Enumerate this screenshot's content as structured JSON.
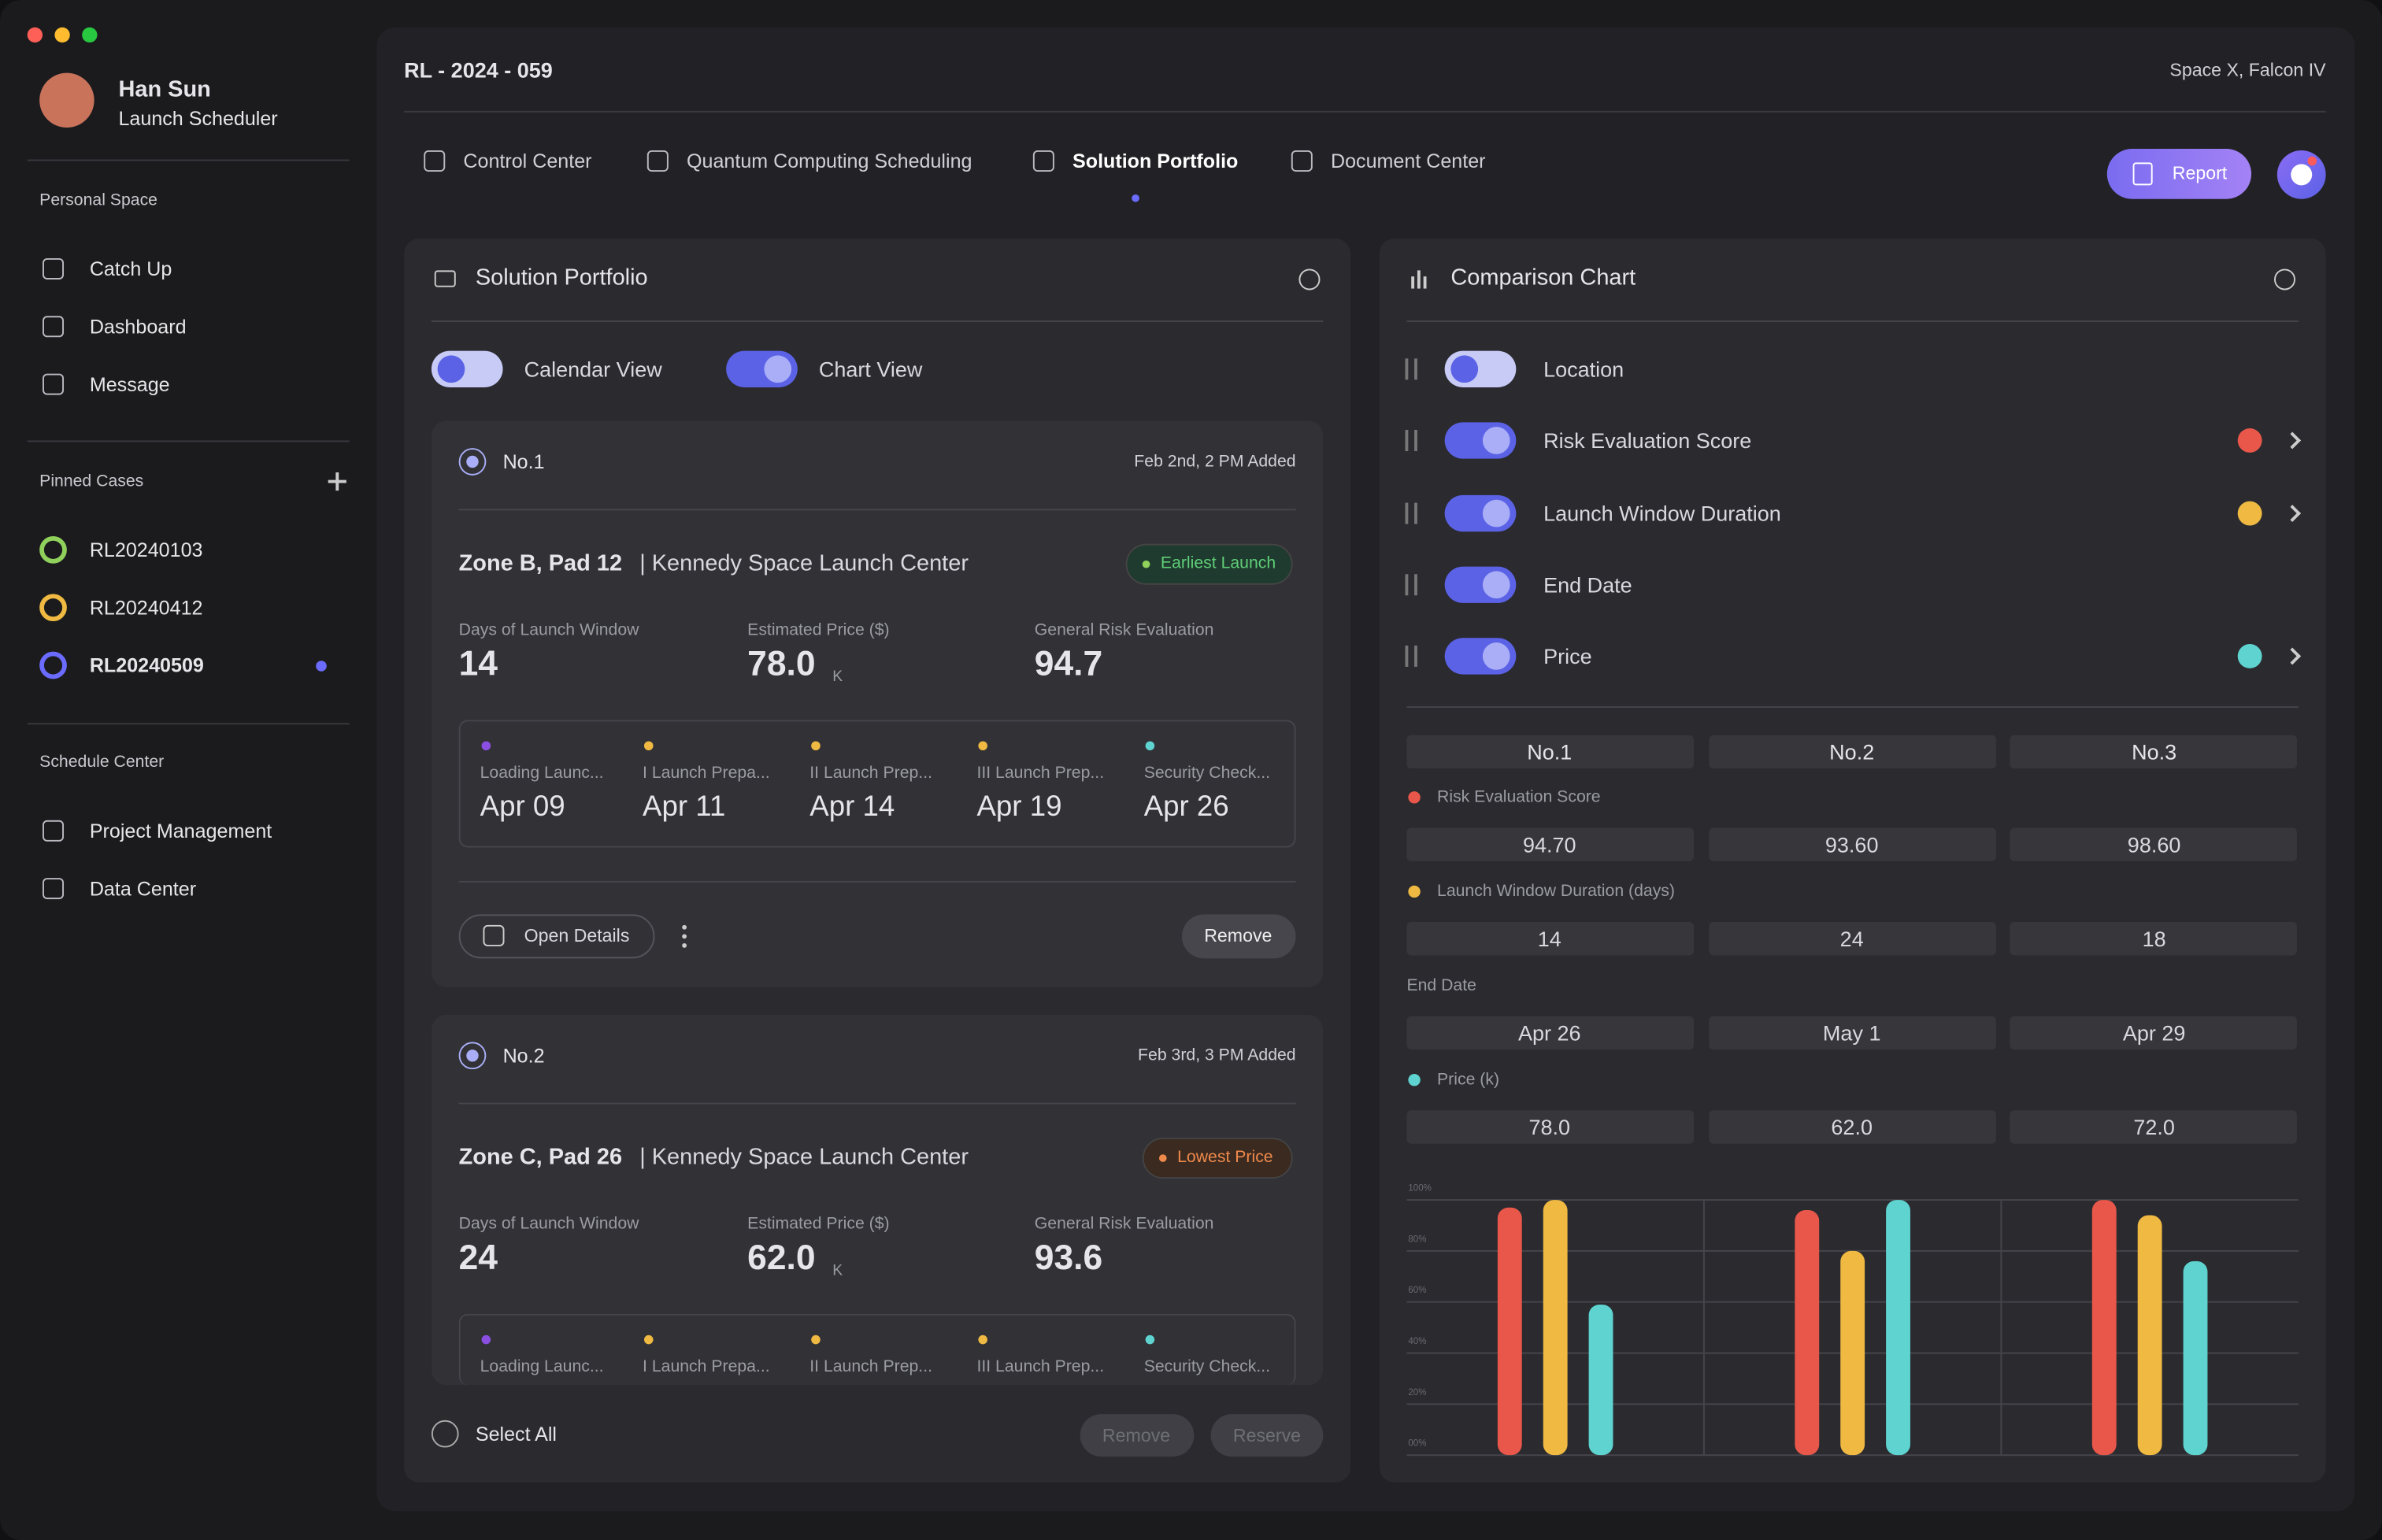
{
  "sidebar": {
    "user": {
      "name": "Han Sun",
      "role": "Launch Scheduler"
    },
    "personal_space": {
      "title": "Personal Space",
      "items": [
        "Catch Up",
        "Dashboard",
        "Message"
      ]
    },
    "pinned_cases": {
      "title": "Pinned Cases",
      "items": [
        "RL20240103",
        "RL20240412",
        "RL20240509"
      ]
    },
    "schedule_center": {
      "title": "Schedule Center",
      "items": [
        "Project Management",
        "Data Center"
      ]
    }
  },
  "header": {
    "case_id": "RL - 2024 - 059",
    "vehicle": "Space X, Falcon IV",
    "tabs": [
      "Control Center",
      "Quantum Computing Scheduling",
      "Solution Portfolio",
      "Document Center"
    ],
    "report": "Report"
  },
  "portfolio": {
    "title": "Solution Portfolio",
    "views": [
      "Calendar View",
      "Chart View"
    ],
    "cards": [
      {
        "no": "No.1",
        "added": "Feb 2nd, 2 PM Added",
        "zone": "Zone B, Pad 12",
        "center": "| Kennedy Space Launch Center",
        "tag": "Earliest Launch",
        "stats": [
          {
            "label": "Days of Launch Window",
            "value": "14"
          },
          {
            "label": "Estimated Price ($)",
            "value": "78.0",
            "unit": "K"
          },
          {
            "label": "General Risk Evaluation",
            "value": "94.7"
          }
        ],
        "timeline": [
          {
            "label": "Loading Launc...",
            "date": "Apr 09"
          },
          {
            "label": "I Launch Prepa...",
            "date": "Apr 11"
          },
          {
            "label": "II Launch Prep...",
            "date": "Apr 14"
          },
          {
            "label": "III Launch Prep...",
            "date": "Apr 19"
          },
          {
            "label": "Security Check...",
            "date": "Apr 26"
          }
        ],
        "open_details": "Open Details",
        "remove": "Remove"
      },
      {
        "no": "No.2",
        "added": "Feb 3rd, 3 PM Added",
        "zone": "Zone C, Pad 26",
        "center": "| Kennedy Space Launch Center",
        "tag": "Lowest Price",
        "stats": [
          {
            "label": "Days of Launch Window",
            "value": "24"
          },
          {
            "label": "Estimated Price ($)",
            "value": "62.0",
            "unit": "K"
          },
          {
            "label": "General Risk Evaluation",
            "value": "93.6"
          }
        ],
        "timeline": [
          {
            "label": "Loading Launc..."
          },
          {
            "label": "I Launch Prepa..."
          },
          {
            "label": "II Launch Prep..."
          },
          {
            "label": "III Launch Prep..."
          },
          {
            "label": "Security Check..."
          }
        ]
      }
    ],
    "select_all": "Select All",
    "remove": "Remove",
    "reserve": "Reserve"
  },
  "comparison": {
    "title": "Comparison Chart",
    "toggles": [
      "Location",
      "Risk Evaluation Score",
      "Launch Window Duration",
      "End Date",
      "Price"
    ],
    "columns": [
      "No.1",
      "No.2",
      "No.3"
    ],
    "rows": [
      {
        "label": "Risk Evaluation Score",
        "values": [
          "94.70",
          "93.60",
          "98.60"
        ]
      },
      {
        "label": "Launch Window Duration (days)",
        "values": [
          "14",
          "24",
          "18"
        ]
      },
      {
        "label": "End Date",
        "values": [
          "Apr 26",
          "May 1",
          "Apr 29"
        ]
      },
      {
        "label": "Price (k)",
        "values": [
          "78.0",
          "62.0",
          "72.0"
        ]
      }
    ]
  },
  "chart_data": {
    "type": "bar",
    "categories": [
      null,
      null,
      null
    ],
    "series": [
      {
        "color": "#e8574a",
        "values": [
          97,
          96,
          100
        ]
      },
      {
        "color": "#efb942",
        "values": [
          100,
          80,
          94
        ]
      },
      {
        "color": "#5ed3cf",
        "values": [
          59,
          100,
          76
        ]
      }
    ],
    "ylim": [
      0,
      100
    ],
    "yticks": [
      {
        "value": 0,
        "label": "00%"
      },
      {
        "value": 20,
        "label": "20%"
      },
      {
        "value": 40,
        "label": "40%"
      },
      {
        "value": 60,
        "label": "60%"
      },
      {
        "value": 80,
        "label": "80%"
      },
      {
        "value": 100,
        "label": "100%"
      }
    ],
    "grid": true
  }
}
